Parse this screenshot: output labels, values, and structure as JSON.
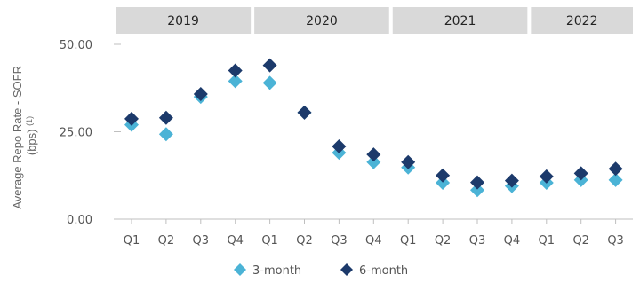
{
  "chart_data": {
    "type": "scatter",
    "ylabel_line1": "Average Repo Rate - SOFR",
    "ylabel_line2": "(bps)",
    "ylabel_footnote": "(1)",
    "ylim": [
      0,
      50
    ],
    "yticks": [
      0,
      25,
      50
    ],
    "ytick_labels": [
      "0.00",
      "25.00",
      "50.00"
    ],
    "grid": false,
    "legend_position": "bottom-center",
    "years": [
      {
        "label": "2019",
        "quarters": 4
      },
      {
        "label": "2020",
        "quarters": 4
      },
      {
        "label": "2021",
        "quarters": 4
      },
      {
        "label": "2022",
        "quarters": 3
      }
    ],
    "categories": [
      "Q1",
      "Q2",
      "Q3",
      "Q4",
      "Q1",
      "Q2",
      "Q3",
      "Q4",
      "Q1",
      "Q2",
      "Q3",
      "Q4",
      "Q1",
      "Q2",
      "Q3"
    ],
    "series": [
      {
        "name": "3-month",
        "color": "#4bb3d6",
        "marker": "diamond",
        "values": [
          27.0,
          24.3,
          35.0,
          39.5,
          39.0,
          30.5,
          19.0,
          16.3,
          14.8,
          10.4,
          8.3,
          9.5,
          10.4,
          11.2,
          11.2
        ]
      },
      {
        "name": "6-month",
        "color": "#1c3a6b",
        "marker": "diamond",
        "values": [
          28.7,
          29.0,
          35.8,
          42.5,
          44.0,
          30.5,
          20.8,
          18.5,
          16.3,
          12.5,
          10.5,
          11.0,
          12.2,
          13.1,
          14.4
        ]
      }
    ],
    "header_color": "#d9d9d9"
  }
}
